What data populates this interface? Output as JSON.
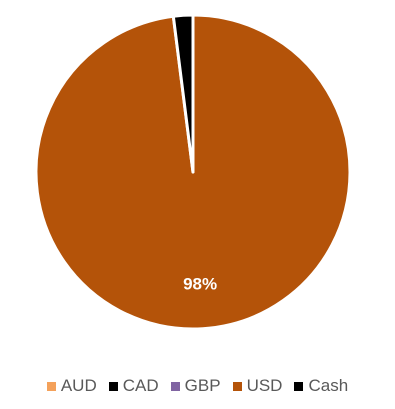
{
  "chart_data": {
    "type": "pie",
    "title": "",
    "categories": [
      "AUD",
      "CAD",
      "GBP",
      "USD",
      "Cash"
    ],
    "values": [
      0,
      0,
      0,
      98,
      2
    ],
    "colors": [
      "#f4a15a",
      "#000000",
      "#8064a2",
      "#b45309",
      "#000000"
    ],
    "data_labels": [
      "",
      "",
      "",
      "98%",
      ""
    ],
    "legend_position": "bottom"
  }
}
